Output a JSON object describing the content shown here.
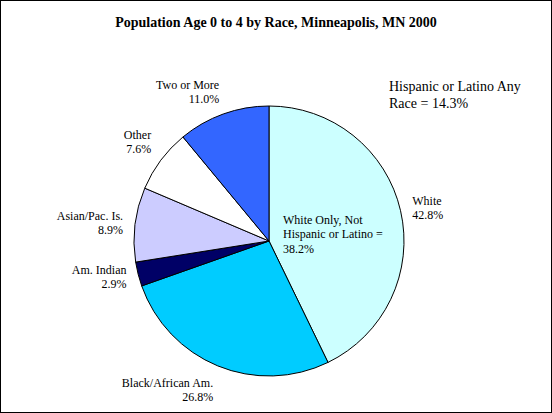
{
  "chart_data": {
    "type": "pie",
    "title": "Population Age 0 to 4 by Race, Minneapolis, MN 2000",
    "categories": [
      "White",
      "Black/African Am.",
      "Am. Indian",
      "Asian/Pac. Is.",
      "Other",
      "Two or More"
    ],
    "values": [
      42.8,
      26.8,
      2.9,
      8.9,
      7.6,
      11.0
    ],
    "value_labels": [
      "42.8%",
      "26.8%",
      "2.9%",
      "8.9%",
      "7.6%",
      "11.0%"
    ],
    "colors": [
      "#ccffff",
      "#00ccff",
      "#000066",
      "#ccccff",
      "#ffffff",
      "#3366ff"
    ],
    "data_labels": true,
    "annotations": [
      "Hispanic or Latino Any Race = 14.3%",
      "White Only, Not Hispanic or Latino = 38.2%"
    ]
  }
}
